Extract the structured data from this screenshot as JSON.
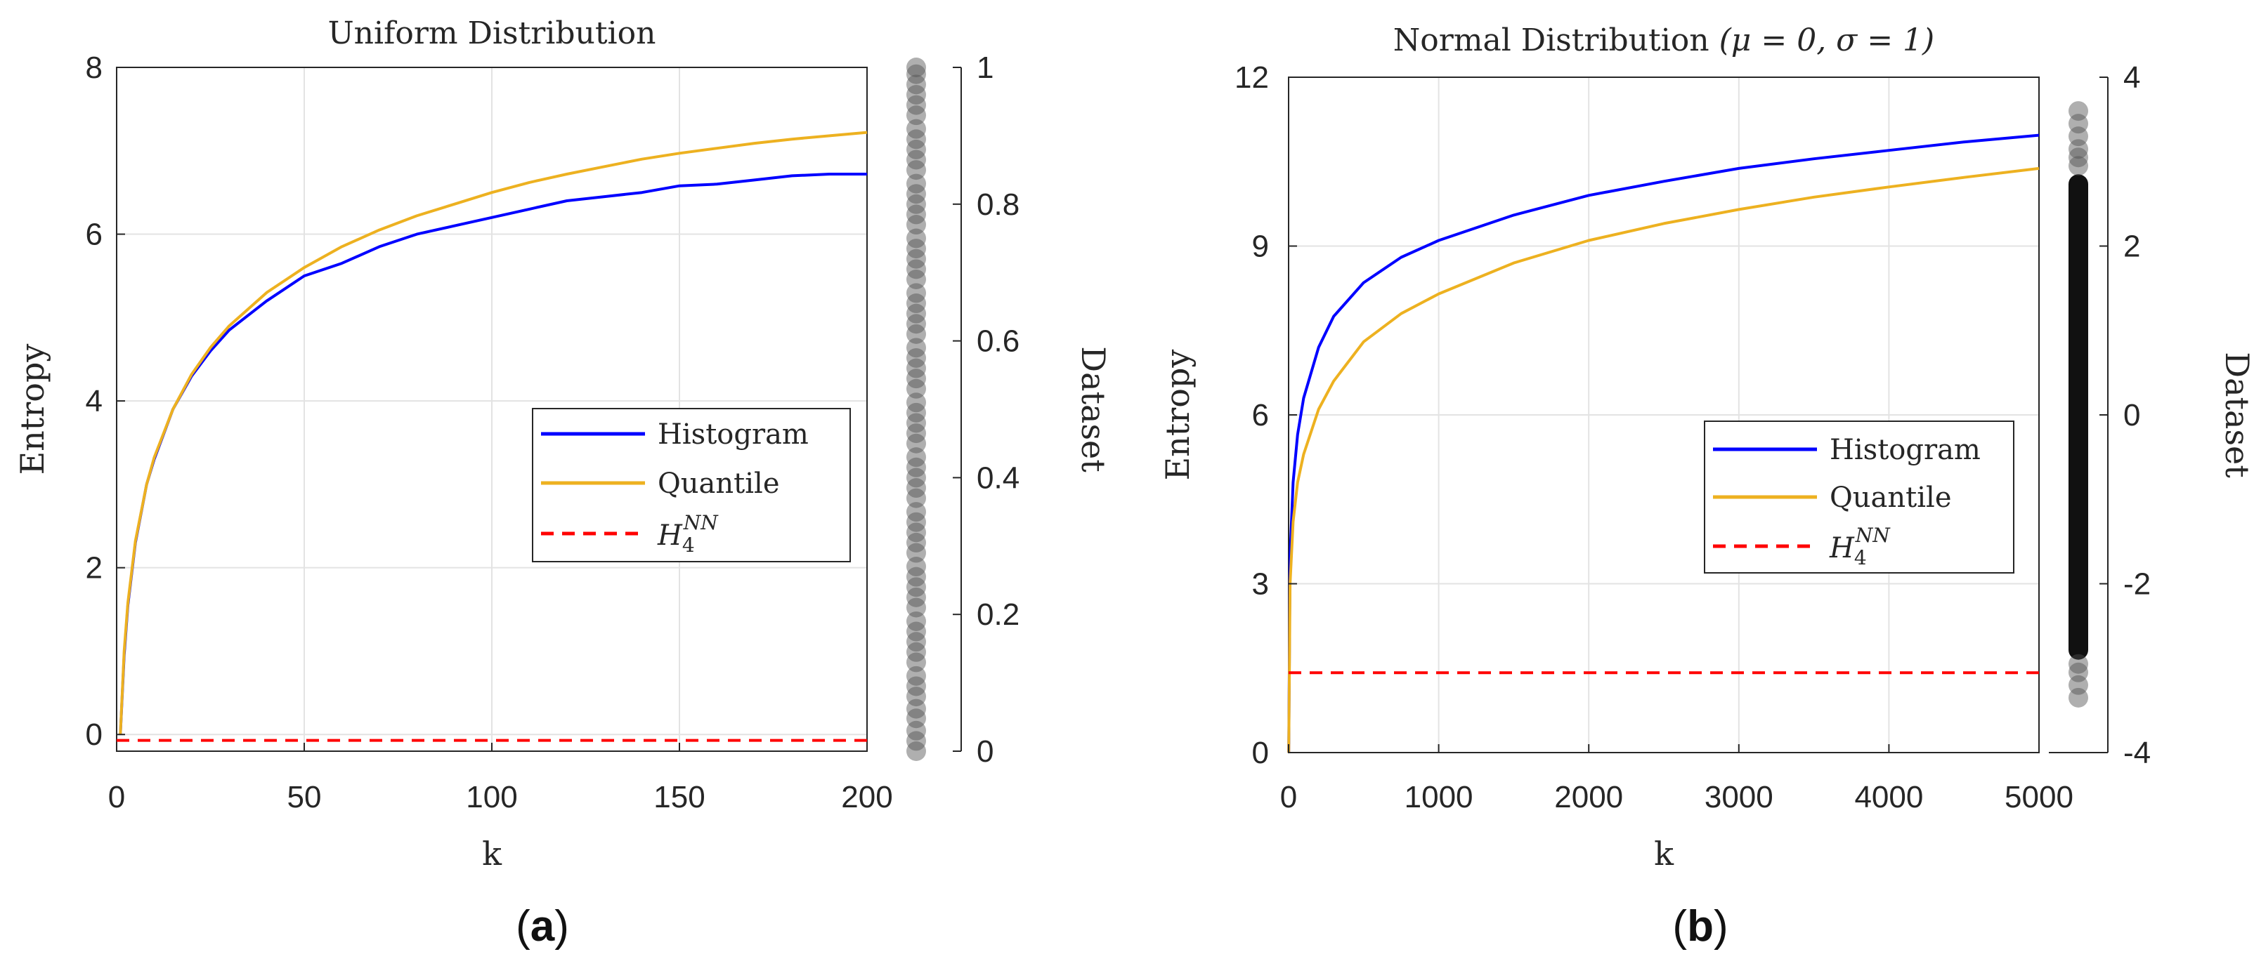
{
  "chart_data": [
    {
      "id": "a",
      "type": "line",
      "title": "Uniform Distribution",
      "xlabel": "k",
      "ylabel": "Entropy",
      "xlim": [
        0,
        200
      ],
      "ylim": [
        -0.2,
        8
      ],
      "xticks": [
        0,
        50,
        100,
        150,
        200
      ],
      "xtick_labels": [
        "0",
        "50",
        "100",
        "150",
        "200"
      ],
      "yticks": [
        0,
        2,
        4,
        6,
        8
      ],
      "ytick_labels": [
        "0",
        "2",
        "4",
        "6",
        "8"
      ],
      "grid": true,
      "legend_position": "middle-right",
      "series": [
        {
          "name": "Histogram",
          "color": "#0000ff",
          "style": "solid",
          "x": [
            1,
            2,
            3,
            5,
            8,
            10,
            15,
            20,
            25,
            30,
            40,
            50,
            60,
            70,
            80,
            90,
            100,
            110,
            120,
            130,
            140,
            150,
            160,
            170,
            180,
            190,
            200
          ],
          "y": [
            0,
            0.95,
            1.55,
            2.3,
            3.0,
            3.3,
            3.9,
            4.3,
            4.6,
            4.85,
            5.2,
            5.5,
            5.65,
            5.85,
            6.0,
            6.1,
            6.2,
            6.3,
            6.4,
            6.45,
            6.5,
            6.58,
            6.6,
            6.65,
            6.7,
            6.72,
            6.72
          ]
        },
        {
          "name": "Quantile",
          "color": "#edb120",
          "style": "solid",
          "x": [
            1,
            2,
            3,
            5,
            8,
            10,
            15,
            20,
            25,
            30,
            40,
            50,
            60,
            70,
            80,
            90,
            100,
            110,
            120,
            130,
            140,
            150,
            160,
            170,
            180,
            190,
            200
          ],
          "y": [
            0,
            1.0,
            1.58,
            2.32,
            3.0,
            3.32,
            3.9,
            4.32,
            4.64,
            4.9,
            5.3,
            5.6,
            5.85,
            6.05,
            6.22,
            6.36,
            6.5,
            6.62,
            6.72,
            6.81,
            6.9,
            6.97,
            7.03,
            7.09,
            7.14,
            7.18,
            7.22
          ]
        },
        {
          "name": "H_4^NN",
          "color": "#ff0000",
          "style": "dashed",
          "x": [
            0,
            200
          ],
          "y": [
            -0.07,
            -0.07
          ]
        }
      ],
      "legend_labels": {
        "histogram": "Histogram",
        "quantile": "Quantile",
        "hnn_main": "H",
        "hnn_sub": "4",
        "hnn_sup": "NN"
      },
      "dataset_axis": {
        "label": "Dataset",
        "lim": [
          0,
          1
        ],
        "ticks": [
          0,
          0.2,
          0.4,
          0.6,
          0.8,
          1
        ],
        "tick_labels": [
          "0",
          "0.2",
          "0.4",
          "0.6",
          "0.8",
          "1"
        ],
        "points": [
          0.0,
          0.015,
          0.03,
          0.048,
          0.062,
          0.08,
          0.095,
          0.11,
          0.13,
          0.145,
          0.16,
          0.175,
          0.19,
          0.21,
          0.225,
          0.24,
          0.255,
          0.27,
          0.29,
          0.305,
          0.32,
          0.335,
          0.35,
          0.37,
          0.385,
          0.4,
          0.415,
          0.43,
          0.45,
          0.465,
          0.48,
          0.495,
          0.51,
          0.53,
          0.545,
          0.56,
          0.575,
          0.59,
          0.61,
          0.625,
          0.64,
          0.655,
          0.67,
          0.69,
          0.705,
          0.72,
          0.735,
          0.75,
          0.77,
          0.785,
          0.8,
          0.815,
          0.83,
          0.85,
          0.865,
          0.88,
          0.895,
          0.91,
          0.93,
          0.945,
          0.96,
          0.975,
          0.99,
          1.0
        ]
      }
    },
    {
      "id": "b",
      "type": "line",
      "title": "Normal Distribution",
      "title_params": "(μ = 0, σ = 1)",
      "xlabel": "k",
      "ylabel": "Entropy",
      "xlim": [
        0,
        5000
      ],
      "ylim": [
        0,
        12
      ],
      "xticks": [
        0,
        1000,
        2000,
        3000,
        4000,
        5000
      ],
      "xtick_labels": [
        "0",
        "1000",
        "2000",
        "3000",
        "4000",
        "5000"
      ],
      "yticks": [
        0,
        3,
        6,
        9,
        12
      ],
      "ytick_labels": [
        "0",
        "3",
        "6",
        "9",
        "12"
      ],
      "grid": true,
      "legend_position": "lower-right",
      "series": [
        {
          "name": "Histogram",
          "color": "#0000ff",
          "style": "solid",
          "x": [
            1,
            10,
            30,
            60,
            100,
            200,
            300,
            500,
            750,
            1000,
            1500,
            2000,
            2500,
            3000,
            3500,
            4000,
            4500,
            5000
          ],
          "y": [
            0,
            3.5,
            4.8,
            5.65,
            6.3,
            7.2,
            7.75,
            8.35,
            8.8,
            9.1,
            9.55,
            9.9,
            10.15,
            10.38,
            10.55,
            10.7,
            10.85,
            10.97
          ]
        },
        {
          "name": "Quantile",
          "color": "#edb120",
          "style": "solid",
          "x": [
            1,
            10,
            30,
            60,
            100,
            200,
            300,
            500,
            750,
            1000,
            1500,
            2000,
            2500,
            3000,
            3500,
            4000,
            4500,
            5000
          ],
          "y": [
            0,
            3.0,
            4.1,
            4.8,
            5.3,
            6.1,
            6.6,
            7.3,
            7.8,
            8.15,
            8.7,
            9.1,
            9.4,
            9.65,
            9.87,
            10.05,
            10.22,
            10.38
          ]
        },
        {
          "name": "H_4^NN",
          "color": "#ff0000",
          "style": "dashed",
          "x": [
            0,
            5000
          ],
          "y": [
            1.42,
            1.42
          ]
        }
      ],
      "legend_labels": {
        "histogram": "Histogram",
        "quantile": "Quantile",
        "hnn_main": "H",
        "hnn_sub": "4",
        "hnn_sup": "NN"
      },
      "dataset_axis": {
        "label": "Dataset",
        "lim": [
          -4,
          4
        ],
        "ticks": [
          -4,
          -2,
          0,
          2,
          4
        ],
        "tick_labels": [
          "-4",
          "-2",
          "0",
          "2",
          "4"
        ],
        "dense_range": [
          -2.9,
          2.85
        ],
        "points": [
          -3.35,
          -3.2,
          -3.05,
          -2.95,
          2.95,
          3.05,
          3.15,
          3.3,
          3.45,
          3.6
        ]
      }
    }
  ],
  "captions": {
    "a": "(a)",
    "b": "(b)"
  }
}
